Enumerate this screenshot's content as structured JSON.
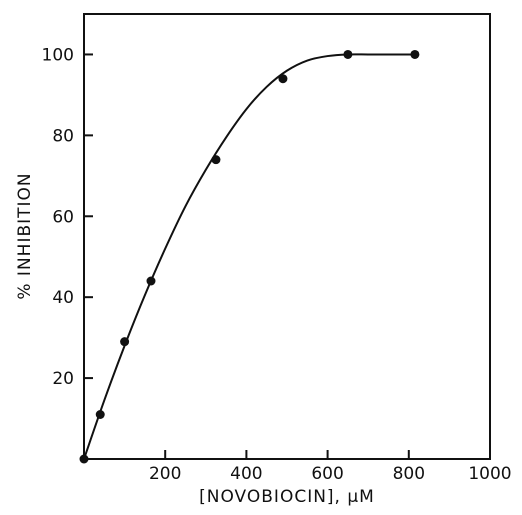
{
  "chart_data": {
    "type": "scatter",
    "title": "",
    "xlabel": "[NOVOBIOCIN], μM",
    "ylabel": "% INHIBITION",
    "xlim": [
      0,
      1000
    ],
    "ylim": [
      0,
      110
    ],
    "xticks": [
      200,
      400,
      600,
      800,
      1000
    ],
    "yticks": [
      20,
      40,
      60,
      80,
      100
    ],
    "xtick_labels": [
      "200",
      "400",
      "600",
      "800",
      "1000"
    ],
    "ytick_labels": [
      "20",
      "40",
      "60",
      "80",
      "100"
    ],
    "grid": false,
    "legend": "none",
    "series": [
      {
        "points": [
          {
            "x": 0,
            "y": 0
          },
          {
            "x": 40,
            "y": 11
          },
          {
            "x": 100,
            "y": 29
          },
          {
            "x": 165,
            "y": 44
          },
          {
            "x": 325,
            "y": 74
          },
          {
            "x": 490,
            "y": 94
          },
          {
            "x": 650,
            "y": 100
          },
          {
            "x": 815,
            "y": 100
          }
        ],
        "fit_curve": [
          {
            "x": 0,
            "y": 0
          },
          {
            "x": 50,
            "y": 14.5
          },
          {
            "x": 100,
            "y": 28
          },
          {
            "x": 150,
            "y": 40.5
          },
          {
            "x": 200,
            "y": 52
          },
          {
            "x": 250,
            "y": 62.5
          },
          {
            "x": 300,
            "y": 71.5
          },
          {
            "x": 350,
            "y": 79.5
          },
          {
            "x": 400,
            "y": 86.5
          },
          {
            "x": 450,
            "y": 92
          },
          {
            "x": 500,
            "y": 96
          },
          {
            "x": 550,
            "y": 98.5
          },
          {
            "x": 600,
            "y": 99.6
          },
          {
            "x": 650,
            "y": 100
          },
          {
            "x": 700,
            "y": 100
          },
          {
            "x": 750,
            "y": 100
          },
          {
            "x": 815,
            "y": 100
          }
        ],
        "color": "#111111"
      }
    ]
  }
}
